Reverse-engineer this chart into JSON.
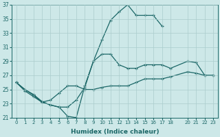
{
  "xlabel": "Humidex (Indice chaleur)",
  "background_color": "#cde8e8",
  "grid_color": "#aacccc",
  "line_color": "#1a6666",
  "line_max_x": [
    0,
    1,
    2,
    3,
    4,
    5,
    6,
    7,
    8,
    9,
    10,
    11,
    12,
    13,
    14,
    15,
    16,
    17
  ],
  "line_max_y": [
    26,
    24.8,
    24.0,
    23.2,
    22.8,
    22.5,
    21.2,
    21.0,
    25.5,
    29.0,
    32.0,
    34.8,
    36.0,
    37.0,
    35.5,
    35.5,
    35.5,
    34.0
  ],
  "line_mean_x": [
    0,
    1,
    2,
    3,
    4,
    5,
    6,
    7,
    8,
    9,
    10,
    11,
    12,
    13,
    14,
    15,
    16,
    17,
    18,
    20,
    21,
    22,
    23
  ],
  "line_mean_y": [
    26.0,
    25.0,
    24.3,
    23.3,
    22.8,
    22.5,
    22.5,
    23.5,
    25.3,
    29.0,
    30.0,
    30.0,
    28.5,
    28.0,
    28.0,
    28.5,
    28.5,
    28.5,
    28.0,
    29.0,
    28.8,
    27.0,
    27.0
  ],
  "line_min_x": [
    0,
    1,
    2,
    3,
    4,
    5,
    6,
    7,
    8,
    9,
    10,
    11,
    12,
    13,
    14,
    15,
    16,
    17,
    18,
    20,
    21,
    22,
    23
  ],
  "line_min_y": [
    26.0,
    25.0,
    24.2,
    23.2,
    23.5,
    24.5,
    25.5,
    25.5,
    25.0,
    25.0,
    25.3,
    25.5,
    25.5,
    25.5,
    26.0,
    26.5,
    26.5,
    26.5,
    26.8,
    27.5,
    27.3,
    27.0,
    27.0
  ],
  "ylim": [
    21,
    37
  ],
  "yticks": [
    21,
    23,
    25,
    27,
    29,
    31,
    33,
    35,
    37
  ],
  "xticks": [
    0,
    1,
    2,
    3,
    4,
    5,
    6,
    7,
    8,
    9,
    10,
    11,
    12,
    13,
    14,
    15,
    16,
    17,
    18,
    20,
    21,
    22,
    23
  ]
}
